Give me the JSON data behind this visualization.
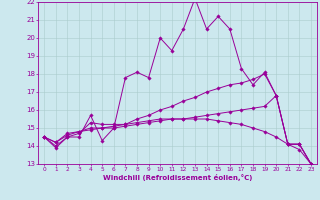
{
  "xlabel": "Windchill (Refroidissement éolien,°C)",
  "bg_color": "#cce8ee",
  "line_color": "#990099",
  "grid_color": "#aacccc",
  "series": [
    [
      14.5,
      13.9,
      14.5,
      14.5,
      15.7,
      14.3,
      15.0,
      17.8,
      18.1,
      17.8,
      20.0,
      19.3,
      20.5,
      22.2,
      20.5,
      21.2,
      20.5,
      18.3,
      17.4,
      18.1,
      16.8,
      14.1,
      14.1,
      13.0
    ],
    [
      14.5,
      14.0,
      14.5,
      14.7,
      15.3,
      15.2,
      15.2,
      15.2,
      15.5,
      15.7,
      16.0,
      16.2,
      16.5,
      16.7,
      17.0,
      17.2,
      17.4,
      17.5,
      17.7,
      18.0,
      16.8,
      14.1,
      14.1,
      13.0
    ],
    [
      14.5,
      14.2,
      14.6,
      14.8,
      14.9,
      15.0,
      15.0,
      15.1,
      15.2,
      15.3,
      15.4,
      15.5,
      15.5,
      15.6,
      15.7,
      15.8,
      15.9,
      16.0,
      16.1,
      16.2,
      16.8,
      14.1,
      14.1,
      13.0
    ],
    [
      14.5,
      14.2,
      14.7,
      14.8,
      15.0,
      15.0,
      15.1,
      15.2,
      15.3,
      15.4,
      15.5,
      15.5,
      15.5,
      15.5,
      15.5,
      15.4,
      15.3,
      15.2,
      15.0,
      14.8,
      14.5,
      14.1,
      13.8,
      13.0
    ]
  ],
  "xmin": -0.5,
  "xmax": 23.5,
  "ymin": 13,
  "ymax": 22,
  "yticks": [
    13,
    14,
    15,
    16,
    17,
    18,
    19,
    20,
    21,
    22
  ],
  "xticks": [
    0,
    1,
    2,
    3,
    4,
    5,
    6,
    7,
    8,
    9,
    10,
    11,
    12,
    13,
    14,
    15,
    16,
    17,
    18,
    19,
    20,
    21,
    22,
    23
  ],
  "tick_fontsize": 4.2,
  "xlabel_fontsize": 5.0,
  "marker_size": 1.8,
  "line_width": 0.7
}
